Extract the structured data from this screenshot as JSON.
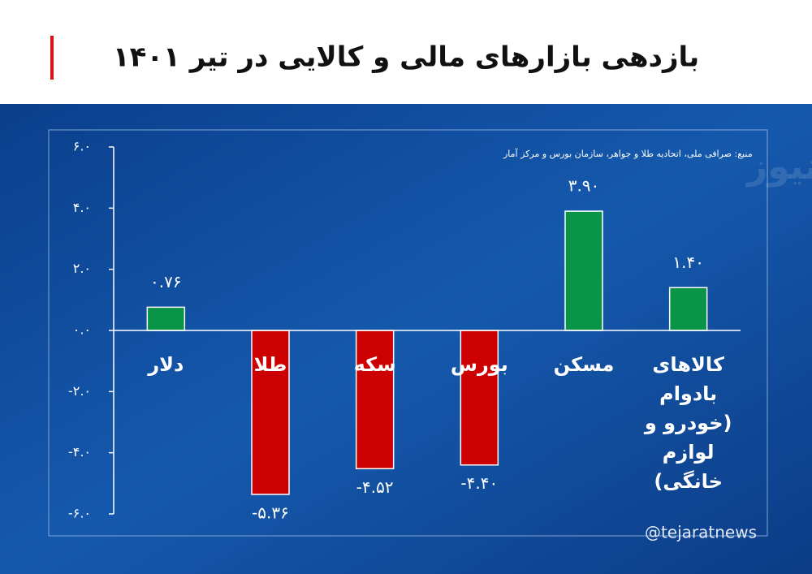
{
  "chart_data": {
    "type": "bar",
    "title": "بازدهی بازارهای مالی و کالایی در تیر ۱۴۰۱",
    "source": "منبع: صرافی ملی، اتحادیه طلا و جواهر، سازمان بورس و مرکز آمار",
    "watermark": "تجارت نیوز",
    "handle": "@tejaratnews",
    "categories": [
      "دلار",
      "طلا",
      "سکه",
      "بورس",
      "مسکن",
      "کالاهای\nبادوام\n(خودرو و\nلوازم خانگی)"
    ],
    "values": [
      0.76,
      -5.36,
      -4.52,
      -4.4,
      3.9,
      1.4
    ],
    "value_labels": [
      "۰.۷۶",
      "-۵.۳۶",
      "-۴.۵۲",
      "-۴.۴۰",
      "۳.۹۰",
      "۱.۴۰"
    ],
    "colors": [
      "#0a9447",
      "#cc0000",
      "#cc0000",
      "#cc0000",
      "#0a9447",
      "#0a9447"
    ],
    "ylim": [
      -6,
      6
    ],
    "yticks": [
      {
        "value": 6,
        "label": "۶.۰"
      },
      {
        "value": 4,
        "label": "۴.۰"
      },
      {
        "value": 2,
        "label": "۲.۰"
      },
      {
        "value": 0,
        "label": "۰.۰"
      },
      {
        "value": -2,
        "label": "-۲.۰"
      },
      {
        "value": -4,
        "label": "-۴.۰"
      },
      {
        "value": -6,
        "label": "-۶.۰"
      }
    ]
  }
}
